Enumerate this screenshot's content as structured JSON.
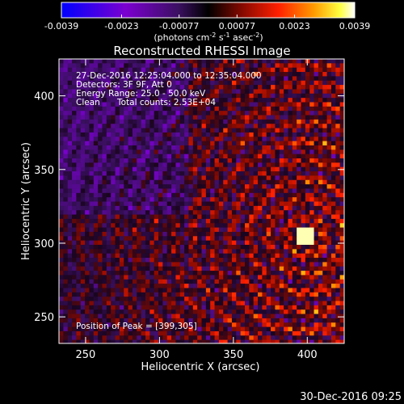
{
  "colorbar": {
    "ticks": [
      "-0.0039",
      "-0.0023",
      "-0.00077",
      "0.00077",
      "0.0023",
      "0.0039"
    ],
    "tick_values": [
      -0.0039,
      -0.0023,
      -0.00077,
      0.00077,
      0.0023,
      0.0039
    ],
    "units_prefix": "(photons cm",
    "units_exp1": "-2",
    "units_mid1": " s",
    "units_exp2": "-1",
    "units_mid2": " asec",
    "units_exp3": "-2",
    "units_suffix": ")",
    "colors": [
      "#0000ff",
      "#7b00d0",
      "#4b1478",
      "#000000",
      "#8a0a00",
      "#ff2000",
      "#ff9a00",
      "#ffff40",
      "#ffffff"
    ]
  },
  "chart_data": {
    "type": "heatmap",
    "title": "Reconstructed RHESSI Image",
    "xlabel": "Heliocentric X (arcsec)",
    "ylabel": "Heliocentric Y (arcsec)",
    "xlim": [
      232,
      425
    ],
    "ylim": [
      232,
      425
    ],
    "xticks": [
      250,
      300,
      350,
      400
    ],
    "yticks": [
      250,
      300,
      350,
      400
    ],
    "annotations": {
      "line1": "27-Dec-2016 12:25:04.000 to 12:35:04.000",
      "line2": "Detectors: 3F 9F, Att 0",
      "line3": "Energy Range: 25.0 - 50.0 keV",
      "line4_a": "Clean",
      "line4_b": "Total counts: 2.53E+04",
      "peak": "Position of Peak = [399,305]"
    },
    "peak": [
      399,
      305
    ]
  },
  "footer": {
    "timestamp": "30-Dec-2016 09:25"
  }
}
